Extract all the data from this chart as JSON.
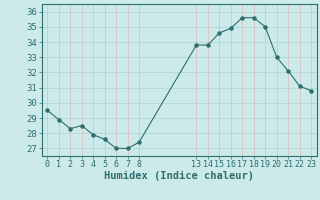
{
  "x": [
    0,
    1,
    2,
    3,
    4,
    5,
    6,
    7,
    8,
    13,
    14,
    15,
    16,
    17,
    18,
    19,
    20,
    21,
    22,
    23
  ],
  "y": [
    29.5,
    28.9,
    28.3,
    28.5,
    27.9,
    27.6,
    27.0,
    27.0,
    27.4,
    33.8,
    33.8,
    34.6,
    34.9,
    35.6,
    35.6,
    35.0,
    33.0,
    32.1,
    31.1,
    30.8
  ],
  "xticks": [
    0,
    1,
    2,
    3,
    4,
    5,
    6,
    7,
    8,
    13,
    14,
    15,
    16,
    17,
    18,
    19,
    20,
    21,
    22,
    23
  ],
  "yticks": [
    27,
    28,
    29,
    30,
    31,
    32,
    33,
    34,
    35,
    36
  ],
  "ylim": [
    26.5,
    36.5
  ],
  "xlim": [
    -0.5,
    23.5
  ],
  "xlabel": "Humidex (Indice chaleur)",
  "line_color": "#2d6e6e",
  "marker": "o",
  "marker_size": 2.2,
  "bg_color": "#cceaea",
  "hgrid_color": "#aad4d4",
  "vgrid_color": "#ddbbbb",
  "spine_color": "#2d6e6e",
  "tick_color": "#2d6e6e",
  "xlabel_fontsize": 7.5,
  "ytick_fontsize": 6.5,
  "xtick_fontsize": 6.0
}
